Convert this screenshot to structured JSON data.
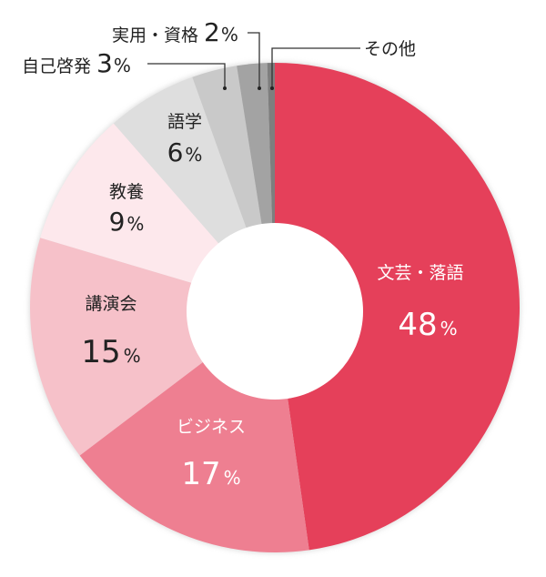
{
  "chart_data": {
    "type": "pie",
    "donut": true,
    "start": "top, clockwise",
    "slices": [
      {
        "label": "文芸・落語",
        "value": 48,
        "value_text": "48",
        "color": "#e5405a",
        "text_color": "#ffffff"
      },
      {
        "label": "ビジネス",
        "value": 17,
        "value_text": "17",
        "color": "#ee7f91",
        "text_color": "#ffffff"
      },
      {
        "label": "講演会",
        "value": 15,
        "value_text": "15",
        "color": "#f6c1c9",
        "text_color": "#222222"
      },
      {
        "label": "教養",
        "value": 9,
        "value_text": "9",
        "color": "#fde8ec",
        "text_color": "#222222"
      },
      {
        "label": "語学",
        "value": 6,
        "value_text": "6",
        "color": "#dedede",
        "text_color": "#222222"
      },
      {
        "label": "自己啓発",
        "value": 3,
        "value_text": "3",
        "color": "#c9c9c9",
        "text_color": "#222222"
      },
      {
        "label": "実用・資格",
        "value": 2,
        "value_text": "2",
        "color": "#a3a3a3",
        "text_color": "#222222"
      },
      {
        "label": "その他",
        "value": 0.5,
        "value_text": null,
        "color": "#7e7e7e",
        "text_color": "#222222"
      }
    ],
    "unit": "%"
  }
}
